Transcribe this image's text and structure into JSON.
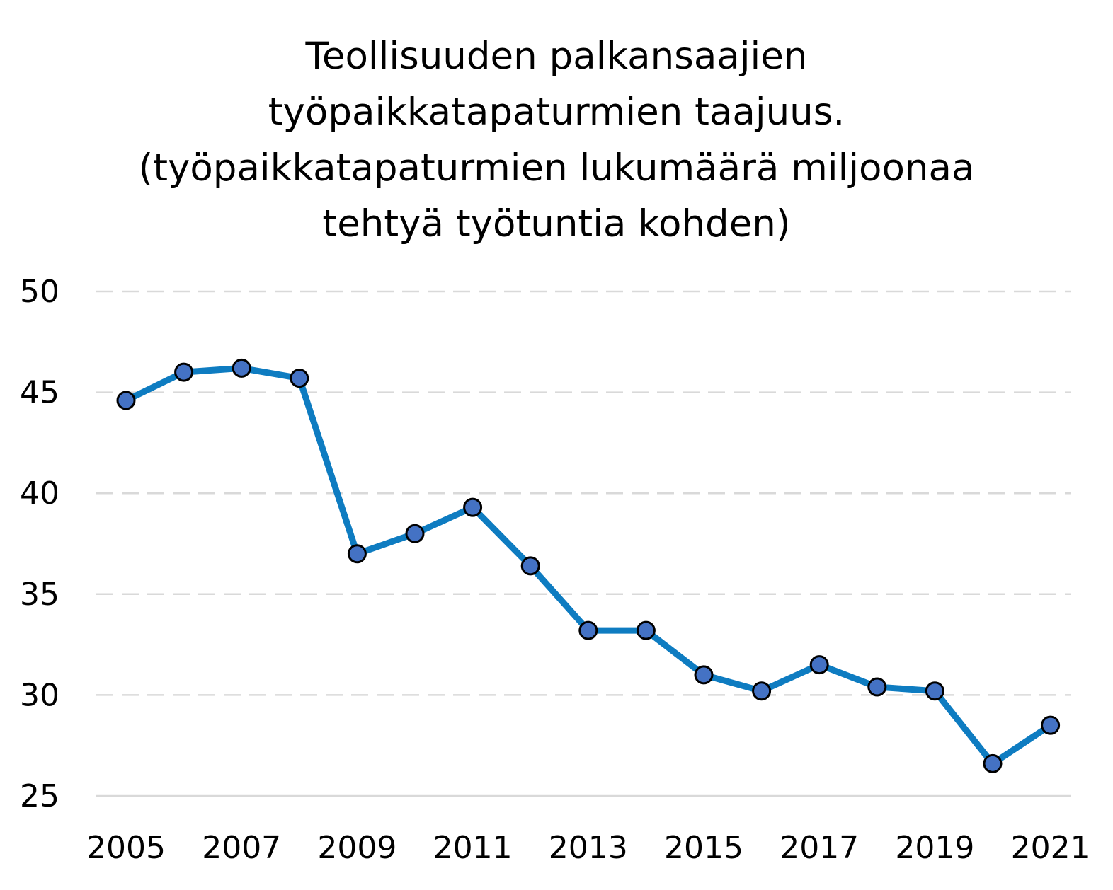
{
  "chart_data": {
    "type": "line",
    "title_lines": [
      "Teollisuuden palkansaajien",
      "työpaikkatapaturmien taajuus.",
      "(työpaikkatapaturmien lukumäärä miljoonaa",
      "tehtyä työtuntia kohden)"
    ],
    "xlabel": "",
    "ylabel": "",
    "x": [
      2005,
      2006,
      2007,
      2008,
      2009,
      2010,
      2011,
      2012,
      2013,
      2014,
      2015,
      2016,
      2017,
      2018,
      2019,
      2020,
      2021
    ],
    "x_tick_labels": [
      "2005",
      "2007",
      "2009",
      "2011",
      "2013",
      "2015",
      "2017",
      "2019",
      "2021"
    ],
    "series": [
      {
        "values": [
          44.6,
          46.0,
          46.2,
          45.7,
          37.0,
          38.0,
          39.3,
          36.4,
          33.2,
          33.2,
          31.0,
          30.2,
          31.5,
          30.4,
          30.2,
          26.6,
          28.5
        ]
      }
    ],
    "ylim": [
      25,
      50
    ],
    "y_ticks": [
      25,
      30,
      35,
      40,
      45,
      50
    ],
    "grid": "horizontal dashed",
    "legend": "none",
    "colors": {
      "line": "#0E7CC1",
      "marker_fill": "#4472C4",
      "marker_edge": "#000000",
      "grid": "#D9D9D9",
      "axis": "#D9D9D9"
    }
  }
}
